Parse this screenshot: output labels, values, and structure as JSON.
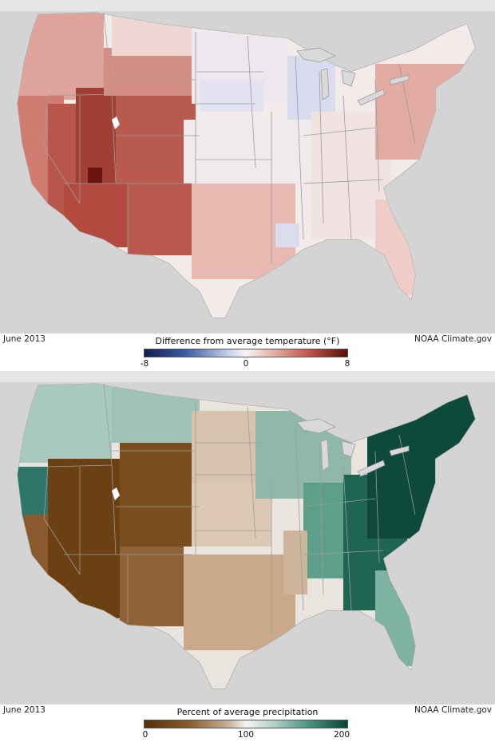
{
  "temperature_map": {
    "date_label": "June 2013",
    "source_label": "NOAA Climate.gov",
    "legend": {
      "title": "Difference from average temperature (°F)",
      "ticks": [
        "-8",
        "0",
        "8"
      ],
      "range": [
        -8,
        8
      ]
    },
    "colors": {
      "low": "#0f1e52",
      "mid": "#f7f4f2",
      "high": "#5a0f0c"
    }
  },
  "precipitation_map": {
    "date_label": "June 2013",
    "source_label": "NOAA Climate.gov",
    "legend": {
      "title": "Percent of average precipitation",
      "ticks": [
        "0",
        "100",
        "200"
      ],
      "range": [
        0,
        200
      ]
    },
    "colors": {
      "low": "#543005",
      "mid": "#f5f5f5",
      "high": "#014636"
    }
  }
}
